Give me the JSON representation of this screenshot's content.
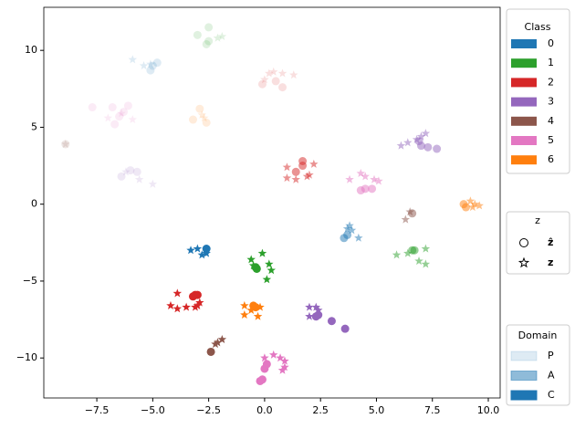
{
  "chart_data": {
    "type": "scatter",
    "xlim": [
      -9.87,
      10.53
    ],
    "ylim": [
      -12.6,
      12.8
    ],
    "xticks": [
      {
        "value": -7.5,
        "label": "−7.5"
      },
      {
        "value": -5,
        "label": "−5.0"
      },
      {
        "value": -2.5,
        "label": "−2.5"
      },
      {
        "value": 0,
        "label": "0.0"
      },
      2.5,
      {
        "value": 5,
        "label": "5.0"
      },
      7.5,
      {
        "value": 10,
        "label": "10.0"
      }
    ],
    "yticks": [
      {
        "value": -10,
        "label": "−10"
      },
      {
        "value": -5,
        "label": "−5"
      },
      0,
      5,
      10
    ],
    "legends": [
      {
        "title": "Class",
        "entries": [
          {
            "label": "0",
            "color": "#1f77b4"
          },
          {
            "label": "1",
            "color": "#2ca02c"
          },
          {
            "label": "2",
            "color": "#d62728"
          },
          {
            "label": "3",
            "color": "#9467bd"
          },
          {
            "label": "4",
            "color": "#8c564b"
          },
          {
            "label": "5",
            "color": "#e377c2"
          },
          {
            "label": "6",
            "color": "#ff7f0e"
          }
        ]
      },
      {
        "title": "z",
        "entries": [
          {
            "label": "ẑ",
            "marker": "circle"
          },
          {
            "label": "z",
            "marker": "star"
          }
        ]
      },
      {
        "title": "Domain",
        "entries": [
          {
            "label": "P",
            "opacity": 0.15
          },
          {
            "label": "A",
            "opacity": 0.5
          },
          {
            "label": "C",
            "opacity": 1
          }
        ]
      }
    ],
    "series": [
      {
        "class": "0",
        "domain": "C",
        "marker": "circle",
        "x": [
          -2.6
        ],
        "y": [
          -2.9
        ]
      },
      {
        "class": "0",
        "domain": "C",
        "marker": "star",
        "x": [
          -3.3,
          -3.0,
          -2.8,
          -2.6
        ],
        "y": [
          -3.0,
          -2.9,
          -3.3,
          -3.2
        ]
      },
      {
        "class": "0",
        "domain": "A",
        "marker": "circle",
        "x": [
          3.55,
          3.7
        ],
        "y": [
          -2.2,
          -2.0
        ]
      },
      {
        "class": "0",
        "domain": "A",
        "marker": "star",
        "x": [
          3.8,
          3.9,
          4.2,
          3.7
        ],
        "y": [
          -1.4,
          -1.7,
          -2.2,
          -1.6
        ]
      },
      {
        "class": "0",
        "domain": "P",
        "marker": "circle",
        "x": [
          -5.1,
          -4.8,
          -5.0
        ],
        "y": [
          8.7,
          9.2,
          9.0
        ]
      },
      {
        "class": "0",
        "domain": "P",
        "marker": "star",
        "x": [
          -5.9,
          -5.4,
          -5.1
        ],
        "y": [
          9.4,
          9.0,
          9.1
        ]
      },
      {
        "class": "1",
        "domain": "C",
        "marker": "circle",
        "x": [
          -0.4,
          -0.35
        ],
        "y": [
          -4.1,
          -4.2
        ]
      },
      {
        "class": "1",
        "domain": "C",
        "marker": "star",
        "x": [
          -0.6,
          -0.1,
          0.2,
          0.3,
          0.1,
          -0.5
        ],
        "y": [
          -3.6,
          -3.2,
          -3.9,
          -4.3,
          -4.9,
          -4.0
        ]
      },
      {
        "class": "1",
        "domain": "A",
        "marker": "circle",
        "x": [
          6.7,
          6.6
        ],
        "y": [
          -3.0,
          -3.0
        ]
      },
      {
        "class": "1",
        "domain": "A",
        "marker": "star",
        "x": [
          5.9,
          6.4,
          7.2,
          6.9,
          7.2
        ],
        "y": [
          -3.3,
          -3.2,
          -2.9,
          -3.7,
          -3.9
        ]
      },
      {
        "class": "1",
        "domain": "P",
        "marker": "circle",
        "x": [
          -2.6,
          -2.5,
          -3.0,
          -2.5
        ],
        "y": [
          10.4,
          10.6,
          11.0,
          11.5
        ]
      },
      {
        "class": "1",
        "domain": "P",
        "marker": "star",
        "x": [
          -2.1,
          -1.9
        ],
        "y": [
          10.8,
          10.9
        ]
      },
      {
        "class": "2",
        "domain": "C",
        "marker": "circle",
        "x": [
          -3.1,
          -3.0,
          -3.2
        ],
        "y": [
          -5.9,
          -5.9,
          -6.0
        ]
      },
      {
        "class": "2",
        "domain": "C",
        "marker": "star",
        "x": [
          -3.9,
          -4.2,
          -3.9,
          -3.5,
          -3.0,
          -2.9,
          -3.1
        ],
        "y": [
          -5.8,
          -6.6,
          -6.8,
          -6.7,
          -6.6,
          -6.4,
          -6.7
        ]
      },
      {
        "class": "2",
        "domain": "A",
        "marker": "circle",
        "x": [
          1.4,
          1.7,
          1.7
        ],
        "y": [
          2.1,
          2.8,
          2.5
        ]
      },
      {
        "class": "2",
        "domain": "A",
        "marker": "star",
        "x": [
          1.0,
          2.2,
          1.0,
          1.4,
          1.9,
          2.0
        ],
        "y": [
          2.4,
          2.6,
          1.7,
          1.6,
          1.8,
          1.9
        ]
      },
      {
        "class": "2",
        "domain": "P",
        "marker": "circle",
        "x": [
          -0.1,
          0.8,
          0.5
        ],
        "y": [
          7.8,
          7.6,
          8.0
        ]
      },
      {
        "class": "2",
        "domain": "P",
        "marker": "star",
        "x": [
          0.2,
          0.4,
          0.8,
          1.3,
          0.0
        ],
        "y": [
          8.5,
          8.6,
          8.5,
          8.4,
          8.1
        ]
      },
      {
        "class": "3",
        "domain": "C",
        "marker": "circle",
        "x": [
          2.3,
          2.4,
          3.0,
          3.6
        ],
        "y": [
          -7.3,
          -7.2,
          -7.6,
          -8.1
        ]
      },
      {
        "class": "3",
        "domain": "C",
        "marker": "star",
        "x": [
          2.0,
          2.3,
          2.4,
          2.0
        ],
        "y": [
          -6.7,
          -6.7,
          -6.9,
          -7.3
        ]
      },
      {
        "class": "3",
        "domain": "A",
        "marker": "circle",
        "x": [
          7.0,
          7.3,
          7.7,
          6.9
        ],
        "y": [
          3.8,
          3.7,
          3.6,
          4.1
        ]
      },
      {
        "class": "3",
        "domain": "A",
        "marker": "star",
        "x": [
          6.1,
          6.4,
          6.8,
          7.2,
          7.0
        ],
        "y": [
          3.8,
          4.0,
          4.2,
          4.6,
          4.4
        ]
      },
      {
        "class": "3",
        "domain": "P",
        "marker": "circle",
        "x": [
          -6.0,
          -6.4,
          -5.7
        ],
        "y": [
          2.2,
          1.8,
          2.1
        ]
      },
      {
        "class": "3",
        "domain": "P",
        "marker": "star",
        "x": [
          -5.6,
          -5.0,
          -6.2
        ],
        "y": [
          1.6,
          1.3,
          2.1
        ]
      },
      {
        "class": "4",
        "domain": "C",
        "marker": "circle",
        "x": [
          -2.4
        ],
        "y": [
          -9.6
        ]
      },
      {
        "class": "4",
        "domain": "C",
        "marker": "star",
        "x": [
          -2.1,
          -1.9,
          -2.2
        ],
        "y": [
          -9.0,
          -8.8,
          -9.1
        ]
      },
      {
        "class": "4",
        "domain": "A",
        "marker": "circle",
        "x": [
          6.6
        ],
        "y": [
          -0.6
        ]
      },
      {
        "class": "4",
        "domain": "A",
        "marker": "star",
        "x": [
          6.3,
          6.5
        ],
        "y": [
          -1.0,
          -0.5
        ]
      },
      {
        "class": "4",
        "domain": "P",
        "marker": "circle",
        "x": [
          -8.9
        ],
        "y": [
          3.9
        ]
      },
      {
        "class": "4",
        "domain": "P",
        "marker": "star",
        "x": [
          -8.9
        ],
        "y": [
          3.9
        ]
      },
      {
        "class": "5",
        "domain": "C",
        "marker": "circle",
        "x": [
          0.0,
          -0.1,
          -0.2,
          0.1
        ],
        "y": [
          -10.7,
          -11.4,
          -11.5,
          -10.4
        ]
      },
      {
        "class": "5",
        "domain": "C",
        "marker": "star",
        "x": [
          0.0,
          0.4,
          0.7,
          0.9,
          0.9,
          0.8
        ],
        "y": [
          -10.0,
          -9.8,
          -10.0,
          -10.2,
          -10.6,
          -10.8
        ]
      },
      {
        "class": "5",
        "domain": "A",
        "marker": "circle",
        "x": [
          4.3,
          4.8,
          4.5
        ],
        "y": [
          0.9,
          1.0,
          1.0
        ]
      },
      {
        "class": "5",
        "domain": "A",
        "marker": "star",
        "x": [
          3.8,
          4.3,
          4.5,
          4.9,
          5.1
        ],
        "y": [
          1.6,
          2.0,
          1.8,
          1.6,
          1.5
        ]
      },
      {
        "class": "5",
        "domain": "P",
        "marker": "circle",
        "x": [
          -7.7,
          -6.8,
          -6.1,
          -6.3,
          -6.7,
          -6.5
        ],
        "y": [
          6.3,
          6.3,
          6.4,
          6.0,
          5.2,
          5.7
        ]
      },
      {
        "class": "5",
        "domain": "P",
        "marker": "star",
        "x": [
          -7.0,
          -6.4,
          -5.9
        ],
        "y": [
          5.6,
          5.9,
          5.5
        ]
      },
      {
        "class": "6",
        "domain": "C",
        "marker": "circle",
        "x": [
          -0.5,
          -0.4
        ],
        "y": [
          -6.6,
          -6.7
        ]
      },
      {
        "class": "6",
        "domain": "C",
        "marker": "star",
        "x": [
          -0.9,
          -0.9,
          -0.6,
          -0.3,
          -0.2
        ],
        "y": [
          -6.6,
          -7.2,
          -6.9,
          -7.3,
          -6.7
        ]
      },
      {
        "class": "6",
        "domain": "A",
        "marker": "circle",
        "x": [
          8.9,
          9.0
        ],
        "y": [
          0.0,
          -0.2
        ]
      },
      {
        "class": "6",
        "domain": "A",
        "marker": "star",
        "x": [
          9.2,
          9.4,
          9.6,
          9.3
        ],
        "y": [
          0.2,
          0.0,
          -0.1,
          -0.2
        ]
      },
      {
        "class": "6",
        "domain": "P",
        "marker": "circle",
        "x": [
          -3.2,
          -2.9,
          -2.6
        ],
        "y": [
          5.5,
          6.2,
          5.3
        ]
      },
      {
        "class": "6",
        "domain": "P",
        "marker": "star",
        "x": [
          -2.8,
          -2.7
        ],
        "y": [
          5.8,
          5.6
        ]
      }
    ]
  }
}
